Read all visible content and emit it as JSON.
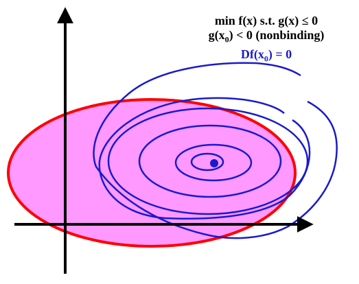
{
  "colors": {
    "feasible_fill": "#ff99ff",
    "feasible_stroke": "#ff0000",
    "contour_stroke": "#1a1acc",
    "optimum_point": "#1a1acc",
    "axes": "#000000",
    "text_black": "#000000",
    "text_blue": "#1a1acc"
  },
  "labels": {
    "problem": "min f(x) s.t. g(x) ≤ 0",
    "constraint_prefix": "g(x",
    "constraint_sub": "0",
    "constraint_suffix": ") < 0 (nonbinding)",
    "gradient_prefix": "Df(x",
    "gradient_sub": "0",
    "gradient_suffix": ") = 0"
  }
}
